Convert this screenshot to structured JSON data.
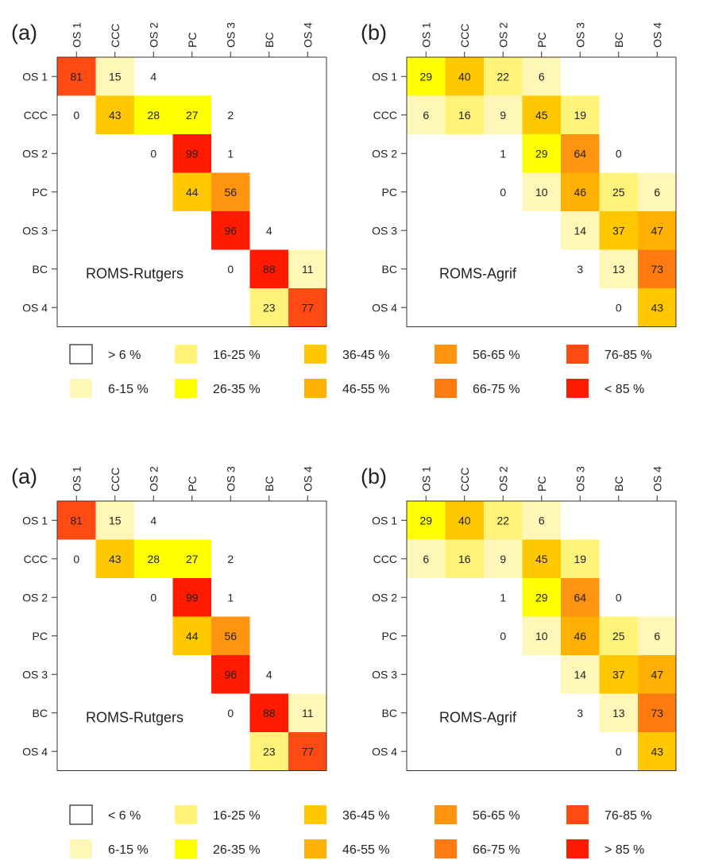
{
  "figures": [
    {
      "legend": {
        "items": [
          {
            "label": "> 6 %",
            "color": "#ffffff"
          },
          {
            "label": "16-25 %",
            "color": "#fff37a"
          },
          {
            "label": "36-45 %",
            "color": "#ffc800"
          },
          {
            "label": "56-65 %",
            "color": "#ff9410"
          },
          {
            "label": "76-85 %",
            "color": "#ff4a14"
          },
          {
            "label": "6-15 %",
            "color": "#fff7b8"
          },
          {
            "label": "26-35 %",
            "color": "#ffff00"
          },
          {
            "label": "46-55 %",
            "color": "#ffb000"
          },
          {
            "label": "66-75 %",
            "color": "#ff7a10"
          },
          {
            "label": "< 85 %",
            "color": "#ff1a00"
          }
        ]
      }
    },
    {
      "legend": {
        "items": [
          {
            "label": "< 6 %",
            "color": "#ffffff"
          },
          {
            "label": "16-25 %",
            "color": "#fff37a"
          },
          {
            "label": "36-45 %",
            "color": "#ffc800"
          },
          {
            "label": "56-65 %",
            "color": "#ff9410"
          },
          {
            "label": "76-85 %",
            "color": "#ff4a14"
          },
          {
            "label": "6-15 %",
            "color": "#fff7b8"
          },
          {
            "label": "26-35 %",
            "color": "#ffff00"
          },
          {
            "label": "46-55 %",
            "color": "#ffb000"
          },
          {
            "label": "66-75 %",
            "color": "#ff7a10"
          },
          {
            "label": "> 85 %",
            "color": "#ff1a00"
          }
        ]
      }
    }
  ],
  "chart_data": [
    {
      "type": "heatmap",
      "panel_label": "(a)",
      "annotation": "ROMS-Rutgers",
      "x_categories": [
        "OS 1",
        "CCC",
        "OS 2",
        "PC",
        "OS 3",
        "BC",
        "OS 4"
      ],
      "y_categories": [
        "OS 1",
        "CCC",
        "OS 2",
        "PC",
        "OS 3",
        "BC",
        "OS 4"
      ],
      "cells": [
        {
          "row": 0,
          "col": 0,
          "value": 81
        },
        {
          "row": 0,
          "col": 1,
          "value": 15
        },
        {
          "row": 0,
          "col": 2,
          "value": 4
        },
        {
          "row": 1,
          "col": 0,
          "value": 0
        },
        {
          "row": 1,
          "col": 1,
          "value": 43
        },
        {
          "row": 1,
          "col": 2,
          "value": 28
        },
        {
          "row": 1,
          "col": 3,
          "value": 27
        },
        {
          "row": 1,
          "col": 4,
          "value": 2
        },
        {
          "row": 2,
          "col": 2,
          "value": 0
        },
        {
          "row": 2,
          "col": 3,
          "value": 99
        },
        {
          "row": 2,
          "col": 4,
          "value": 1
        },
        {
          "row": 3,
          "col": 3,
          "value": 44
        },
        {
          "row": 3,
          "col": 4,
          "value": 56
        },
        {
          "row": 4,
          "col": 4,
          "value": 96
        },
        {
          "row": 4,
          "col": 5,
          "value": 4
        },
        {
          "row": 5,
          "col": 4,
          "value": 0
        },
        {
          "row": 5,
          "col": 5,
          "value": 88
        },
        {
          "row": 5,
          "col": 6,
          "value": 11
        },
        {
          "row": 6,
          "col": 5,
          "value": 23
        },
        {
          "row": 6,
          "col": 6,
          "value": 77
        }
      ]
    },
    {
      "type": "heatmap",
      "panel_label": "(b)",
      "annotation": "ROMS-Agrif",
      "x_categories": [
        "OS 1",
        "CCC",
        "OS 2",
        "PC",
        "OS 3",
        "BC",
        "OS 4"
      ],
      "y_categories": [
        "OS 1",
        "CCC",
        "OS 2",
        "PC",
        "OS 3",
        "BC",
        "OS 4"
      ],
      "cells": [
        {
          "row": 0,
          "col": 0,
          "value": 29
        },
        {
          "row": 0,
          "col": 1,
          "value": 40
        },
        {
          "row": 0,
          "col": 2,
          "value": 22
        },
        {
          "row": 0,
          "col": 3,
          "value": 6
        },
        {
          "row": 1,
          "col": 0,
          "value": 6
        },
        {
          "row": 1,
          "col": 1,
          "value": 16
        },
        {
          "row": 1,
          "col": 2,
          "value": 9
        },
        {
          "row": 1,
          "col": 3,
          "value": 45
        },
        {
          "row": 1,
          "col": 4,
          "value": 19
        },
        {
          "row": 2,
          "col": 2,
          "value": 1
        },
        {
          "row": 2,
          "col": 3,
          "value": 29
        },
        {
          "row": 2,
          "col": 4,
          "value": 64
        },
        {
          "row": 2,
          "col": 5,
          "value": 0
        },
        {
          "row": 3,
          "col": 2,
          "value": 0
        },
        {
          "row": 3,
          "col": 3,
          "value": 10
        },
        {
          "row": 3,
          "col": 4,
          "value": 46
        },
        {
          "row": 3,
          "col": 5,
          "value": 25
        },
        {
          "row": 3,
          "col": 6,
          "value": 6
        },
        {
          "row": 4,
          "col": 4,
          "value": 14
        },
        {
          "row": 4,
          "col": 5,
          "value": 37
        },
        {
          "row": 4,
          "col": 6,
          "value": 47
        },
        {
          "row": 5,
          "col": 4,
          "value": 3
        },
        {
          "row": 5,
          "col": 5,
          "value": 13
        },
        {
          "row": 5,
          "col": 6,
          "value": 73
        },
        {
          "row": 6,
          "col": 5,
          "value": 0
        },
        {
          "row": 6,
          "col": 6,
          "value": 43
        }
      ]
    }
  ]
}
